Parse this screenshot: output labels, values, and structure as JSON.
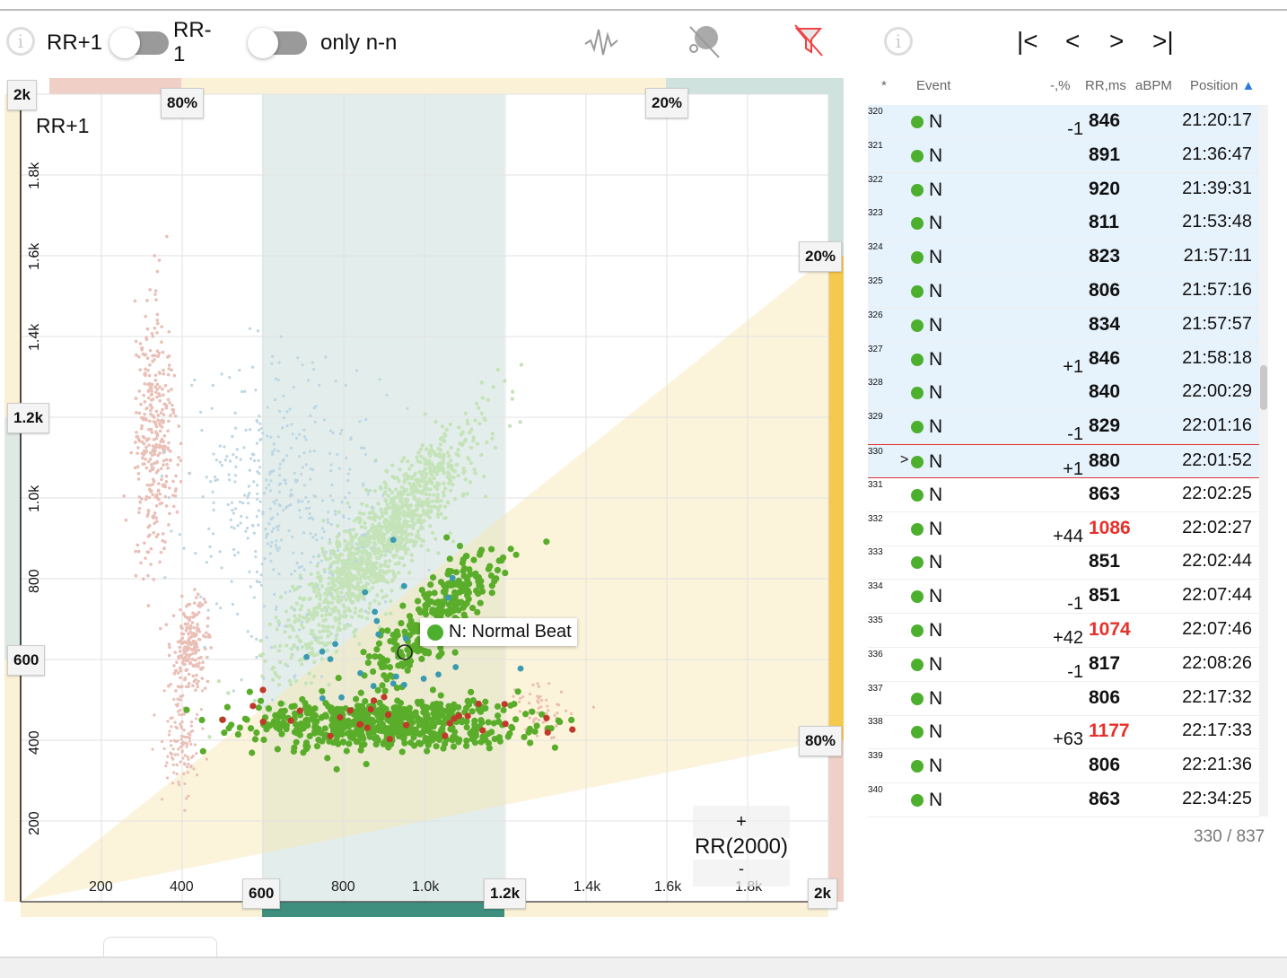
{
  "toolbar": {
    "toggle1_left": "RR+1",
    "toggle1_right": "RR-1",
    "toggle2_label": "only n-n",
    "icons": [
      "info-icon",
      "waveform-icon",
      "no-annotation-icon",
      "filter-off-icon"
    ]
  },
  "nav": {
    "first": "|<",
    "prev": "<",
    "next": ">",
    "last": ">|"
  },
  "plot": {
    "y_label": "RR+1",
    "x_label": "RR(2000)",
    "zoom_plus": "+",
    "zoom_minus": "-",
    "x_ticks": [
      "200",
      "400",
      "800",
      "1.0k",
      "1.4k",
      "1.6k",
      "1.8k"
    ],
    "x_tick_values": [
      200,
      400,
      800,
      1000,
      1400,
      1600,
      1800
    ],
    "y_ticks": [
      "200",
      "400",
      "800",
      "1.0k",
      "1.4k",
      "1.6k",
      "1.8k"
    ],
    "y_tick_values": [
      200,
      400,
      800,
      1000,
      1400,
      1600,
      1800
    ],
    "tags": {
      "top_left": "2k",
      "top_80": "80%",
      "top_20": "20%",
      "right_20": "20%",
      "right_80": "80%",
      "y_1200": "1.2k",
      "y_600": "600",
      "x_600": "600",
      "x_1200": "1.2k",
      "x_2k": "2k"
    },
    "tooltip": "N: Normal Beat",
    "colors": {
      "normal": "#4caf2e",
      "ventricular": "#c0392b",
      "other": "#3a9ab0",
      "band_teal": "#3f8f7f",
      "band_yellow": "#f5c84e"
    },
    "clusters": [
      {
        "cx": 880,
        "cy": 880,
        "sx": 180,
        "sy": 170,
        "rot": 0.9,
        "n": 1400,
        "color": "#c5e3b8",
        "r": 2.2
      },
      {
        "cx": 330,
        "cy": 1150,
        "sx": 25,
        "sy": 150,
        "rot": 0,
        "n": 350,
        "color": "#e9bfb6",
        "r": 1.8
      },
      {
        "cx": 420,
        "cy": 630,
        "sx": 25,
        "sy": 50,
        "rot": 0,
        "n": 200,
        "color": "#e9bfb6",
        "r": 1.8
      },
      {
        "cx": 400,
        "cy": 400,
        "sx": 25,
        "sy": 60,
        "rot": 0,
        "n": 120,
        "color": "#e9bfb6",
        "r": 1.6
      },
      {
        "cx": 650,
        "cy": 1000,
        "sx": 120,
        "sy": 180,
        "rot": 0,
        "n": 420,
        "color": "#bcd6e3",
        "r": 1.6
      },
      {
        "cx": 1290,
        "cy": 470,
        "sx": 40,
        "sy": 30,
        "rot": 0,
        "n": 60,
        "color": "#ebbcb0",
        "r": 1.6
      },
      {
        "cx": 900,
        "cy": 440,
        "sx": 160,
        "sy": 30,
        "rot": 0,
        "n": 600,
        "color": "#5aad2a",
        "r": 3.6
      },
      {
        "cx": 1020,
        "cy": 700,
        "sx": 110,
        "sy": 140,
        "rot": 0.85,
        "n": 300,
        "color": "#5aad2a",
        "r": 3.6
      },
      {
        "cx": 950,
        "cy": 440,
        "sx": 260,
        "sy": 40,
        "rot": 0,
        "n": 30,
        "color": "#c0392b",
        "r": 3.6
      },
      {
        "cx": 950,
        "cy": 620,
        "sx": 120,
        "sy": 100,
        "rot": 0,
        "n": 25,
        "color": "#3a9ab0",
        "r": 3.4
      }
    ]
  },
  "table": {
    "headers": {
      "star": "*",
      "event": "Event",
      "diff": "-,%",
      "rr": "RR,ms",
      "abpm": "aBPM",
      "position": "Position"
    },
    "sort_icon": "▲",
    "rows": [
      {
        "n": "320",
        "ev": "N",
        "diff": "-1",
        "rr": "846",
        "pos": "21:20:17"
      },
      {
        "n": "321",
        "ev": "N",
        "diff": "",
        "rr": "891",
        "pos": "21:36:47"
      },
      {
        "n": "322",
        "ev": "N",
        "diff": "",
        "rr": "920",
        "pos": "21:39:31"
      },
      {
        "n": "323",
        "ev": "N",
        "diff": "",
        "rr": "811",
        "pos": "21:53:48"
      },
      {
        "n": "324",
        "ev": "N",
        "diff": "",
        "rr": "823",
        "pos": "21:57:11"
      },
      {
        "n": "325",
        "ev": "N",
        "diff": "",
        "rr": "806",
        "pos": "21:57:16"
      },
      {
        "n": "326",
        "ev": "N",
        "diff": "",
        "rr": "834",
        "pos": "21:57:57"
      },
      {
        "n": "327",
        "ev": "N",
        "diff": "+1",
        "rr": "846",
        "pos": "21:58:18"
      },
      {
        "n": "328",
        "ev": "N",
        "diff": "",
        "rr": "840",
        "pos": "22:00:29"
      },
      {
        "n": "329",
        "ev": "N",
        "diff": "-1",
        "rr": "829",
        "pos": "22:01:16"
      },
      {
        "n": "330",
        "ev": "N",
        "diff": "+1",
        "rr": "880",
        "pos": "22:01:52",
        "current": true
      },
      {
        "n": "331",
        "ev": "N",
        "diff": "",
        "rr": "863",
        "pos": "22:02:25"
      },
      {
        "n": "332",
        "ev": "N",
        "diff": "+44",
        "rr": "1086",
        "pos": "22:02:27",
        "red": true
      },
      {
        "n": "333",
        "ev": "N",
        "diff": "",
        "rr": "851",
        "pos": "22:02:44"
      },
      {
        "n": "334",
        "ev": "N",
        "diff": "-1",
        "rr": "851",
        "pos": "22:07:44"
      },
      {
        "n": "335",
        "ev": "N",
        "diff": "+42",
        "rr": "1074",
        "pos": "22:07:46",
        "red": true
      },
      {
        "n": "336",
        "ev": "N",
        "diff": "-1",
        "rr": "817",
        "pos": "22:08:26"
      },
      {
        "n": "337",
        "ev": "N",
        "diff": "",
        "rr": "806",
        "pos": "22:17:32"
      },
      {
        "n": "338",
        "ev": "N",
        "diff": "+63",
        "rr": "1177",
        "pos": "22:17:33",
        "red": true
      },
      {
        "n": "339",
        "ev": "N",
        "diff": "",
        "rr": "806",
        "pos": "22:21:36"
      },
      {
        "n": "340",
        "ev": "N",
        "diff": "",
        "rr": "863",
        "pos": "22:34:25"
      }
    ],
    "current_marker": ">",
    "pager": "330 / 837"
  }
}
